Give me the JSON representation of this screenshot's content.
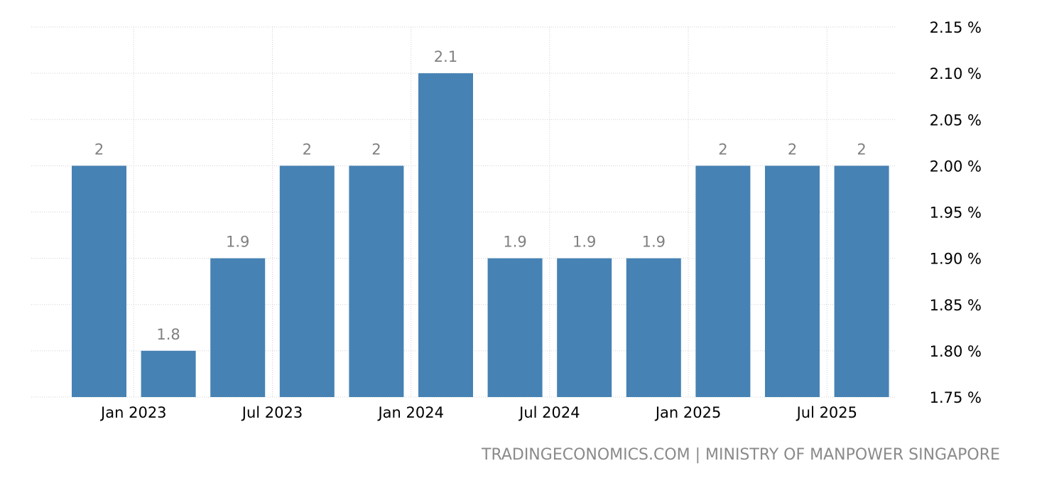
{
  "chart_data": {
    "type": "bar",
    "title": "",
    "xlabel": "",
    "ylabel": "",
    "periods": [
      "2022-Q4",
      "2023-Q1",
      "2023-Q2",
      "2023-Q3",
      "2023-Q4",
      "2024-Q1",
      "2024-Q2",
      "2024-Q3",
      "2024-Q4",
      "2025-Q1",
      "2025-Q2",
      "2025-Q3"
    ],
    "values": [
      2.0,
      1.8,
      1.9,
      2.0,
      2.0,
      2.1,
      1.9,
      1.9,
      1.9,
      2.0,
      2.0,
      2.0
    ],
    "data_labels": [
      "2",
      "1.8",
      "1.9",
      "2",
      "2",
      "2.1",
      "1.9",
      "1.9",
      "1.9",
      "2",
      "2",
      "2"
    ],
    "x_tick_labels": [
      "Jan 2023",
      "Jul 2023",
      "Jan 2024",
      "Jul 2024",
      "Jan 2025",
      "Jul 2025"
    ],
    "y_tick_labels": [
      "1.75 %",
      "1.80 %",
      "1.85 %",
      "1.90 %",
      "1.95 %",
      "2.00 %",
      "2.05 %",
      "2.10 %",
      "2.15 %"
    ],
    "y_ticks": [
      1.75,
      1.8,
      1.85,
      1.9,
      1.95,
      2.0,
      2.05,
      2.1,
      2.15
    ],
    "ylim": [
      1.75,
      2.15
    ],
    "y_axis_position": "right",
    "grid": true,
    "bar_color": "#4682b4",
    "label_color": "#808080"
  },
  "source": "TRADINGECONOMICS.COM | MINISTRY OF MANPOWER SINGAPORE"
}
